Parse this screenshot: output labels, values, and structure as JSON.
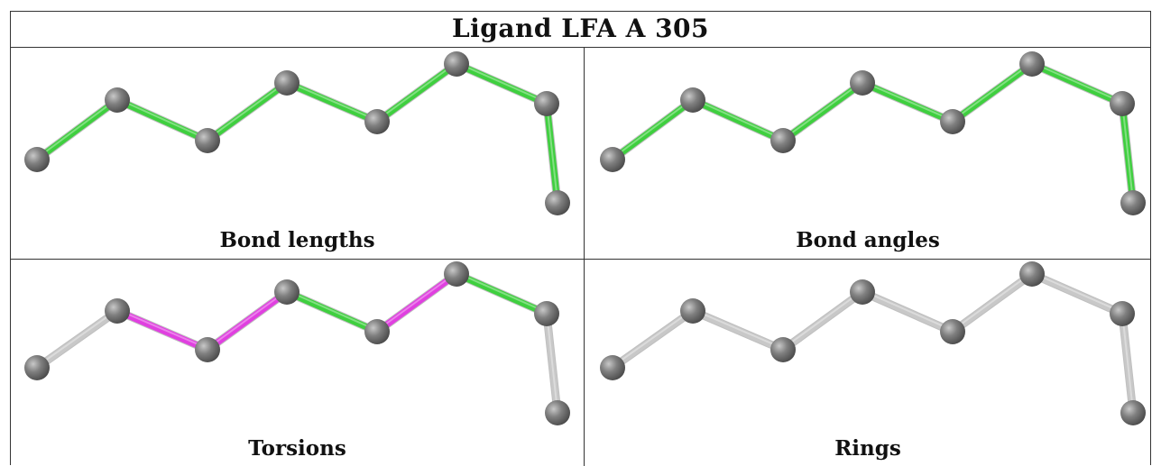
{
  "title": "Ligand LFA A 305",
  "panels": [
    {
      "caption": "Bond lengths",
      "bond_colors": [
        "#3fcf3f",
        "#3fcf3f",
        "#3fcf3f",
        "#3fcf3f",
        "#3fcf3f",
        "#3fcf3f",
        "#3fcf3f"
      ]
    },
    {
      "caption": "Bond angles",
      "bond_colors": [
        "#3fcf3f",
        "#3fcf3f",
        "#3fcf3f",
        "#3fcf3f",
        "#3fcf3f",
        "#3fcf3f",
        "#3fcf3f"
      ]
    },
    {
      "caption": "Torsions",
      "bond_colors": [
        "#c8c8c8",
        "#e040e0",
        "#e040e0",
        "#3fcf3f",
        "#e040e0",
        "#3fcf3f",
        "#c8c8c8"
      ]
    },
    {
      "caption": "Rings",
      "bond_colors": [
        "#c8c8c8",
        "#c8c8c8",
        "#c8c8c8",
        "#c8c8c8",
        "#c8c8c8",
        "#c8c8c8",
        "#c8c8c8"
      ]
    }
  ],
  "atom_color": "#808080"
}
